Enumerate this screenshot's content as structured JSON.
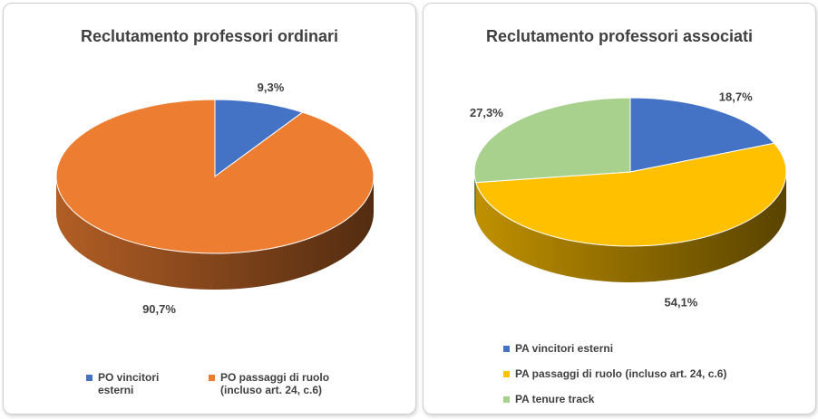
{
  "chart_data": [
    {
      "type": "pie",
      "title": "Reclutamento professori ordinari",
      "categories": [
        "PO vincitori esterni",
        "PO passaggi di ruolo (incluso art. 24, c.6)"
      ],
      "values": [
        9.3,
        90.7
      ],
      "value_labels": [
        "9,3%",
        "90,7%"
      ],
      "colors": [
        "#4472c4",
        "#ed7d31"
      ],
      "legend": "bottom"
    },
    {
      "type": "pie",
      "title": "Reclutamento professori associati",
      "categories": [
        "PA vincitori esterni",
        "PA passaggi di ruolo (incluso art. 24, c.6)",
        "PA tenure track"
      ],
      "values": [
        18.7,
        54.1,
        27.3
      ],
      "value_labels": [
        "18,7%",
        "54,1%",
        "27,3%"
      ],
      "colors": [
        "#4472c4",
        "#ffc000",
        "#a9d18e"
      ],
      "legend": "bottom"
    }
  ]
}
